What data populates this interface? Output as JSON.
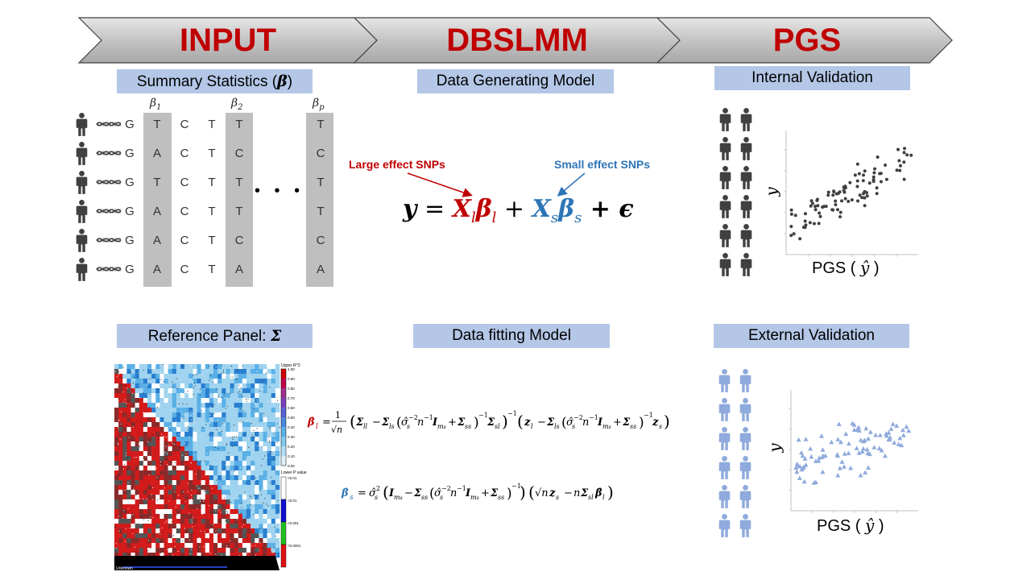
{
  "banner": {
    "stage1": "INPUT",
    "stage2": "DBSLMM",
    "stage3": "PGS",
    "title_color": "#c00000",
    "chevron_color": "#bfbfbf"
  },
  "labels": {
    "summary_stats": "Summary  Statistics (",
    "summary_stats_beta": "β",
    "summary_stats_close": ")",
    "data_generating": "Data Generating Model",
    "internal_validation": "Internal Validation",
    "reference_panel": "Reference Panel: ",
    "reference_panel_sigma": "Σ",
    "data_fitting": "Data fitting Model",
    "external_validation": "External Validation"
  },
  "genotype": {
    "beta_labels": [
      "β",
      "β",
      "β"
    ],
    "beta_subs": [
      "1",
      "2",
      "p"
    ],
    "ellipsis": "• • •",
    "rows": [
      [
        "G",
        "T",
        "C",
        "T",
        "T",
        "T"
      ],
      [
        "G",
        "A",
        "C",
        "T",
        "C",
        "C"
      ],
      [
        "G",
        "T",
        "C",
        "T",
        "T",
        "T"
      ],
      [
        "G",
        "A",
        "C",
        "T",
        "T",
        "T"
      ],
      [
        "G",
        "A",
        "C",
        "T",
        "C",
        "C"
      ],
      [
        "G",
        "A",
        "C",
        "T",
        "A",
        "A"
      ]
    ]
  },
  "model": {
    "large_effect": "Large effect SNPs",
    "small_effect": "Small effect SNPs",
    "eq_y": "y",
    "eq_eq": " = ",
    "eq_Xl": "X",
    "eq_l": "l",
    "eq_bl": "β",
    "eq_plus1": " + ",
    "eq_Xs": "X",
    "eq_s": "s",
    "eq_bs": "β",
    "eq_plus2": " + ϵ"
  },
  "ld_legend": {
    "upper_title": "Upper R^2",
    "upper_ticks": [
      "1.00",
      "0.90",
      "0.80",
      "0.70",
      "0.60",
      "0.50",
      "0.40",
      "0.30",
      "0.20",
      "0.10",
      "0.00"
    ],
    "lower_title": "Lower P value",
    "lower_ticks": [
      "0.01",
      "0.01",
      "0.001",
      "0.0001"
    ],
    "bottom_label": "Unknown"
  },
  "internal_plot": {
    "xlabel": "PGS ( ",
    "xhat": "ŷ",
    "xclose": " )",
    "ylabel": "y",
    "marker_color": "#404040"
  },
  "external_plot": {
    "xlabel": "PGS ( ",
    "xhat": "ŷ",
    "xclose": " )",
    "ylabel": "y",
    "marker_color": "#8faadc"
  }
}
